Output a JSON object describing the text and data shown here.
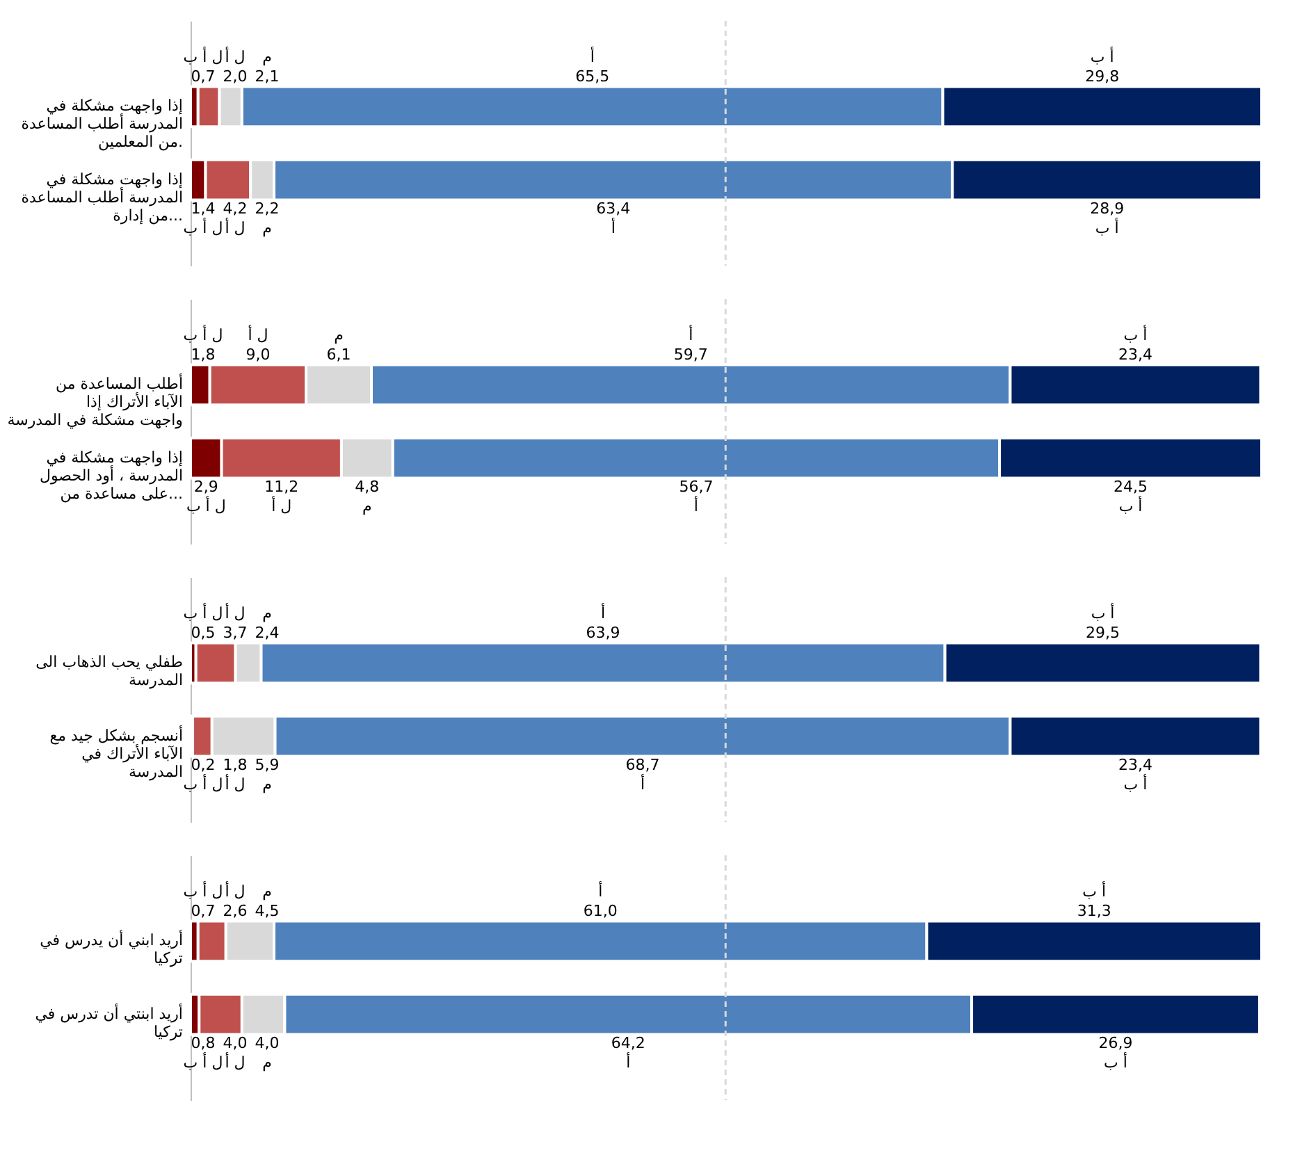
{
  "chart_data": [
    {
      "type": "bar",
      "orientation": "horizontal",
      "stacked": true,
      "tick_labels": "y",
      "xlim": [
        0,
        100.1
      ],
      "categories": [
        "إذا واجهت مشكلة في المدرسة أطلب المساعدة من المعلمين.",
        "إذا واجهت مشكلة في المدرسة أطلب المساعدة من إدارة..."
      ],
      "series": [
        {
          "name": "ل أ ب",
          "color": "#7f0000",
          "values": [
            0.7,
            1.4
          ],
          "value_labels": [
            "0,7",
            "1,4"
          ]
        },
        {
          "name": "ل أ",
          "color": "#c0504d",
          "values": [
            2.0,
            4.2
          ],
          "value_labels": [
            "2,0",
            "4,2"
          ]
        },
        {
          "name": "م",
          "color": "#d9d9d9",
          "values": [
            2.1,
            2.2
          ],
          "value_labels": [
            "2,1",
            "2,2"
          ]
        },
        {
          "name": "أ",
          "color": "#4f81bd",
          "values": [
            65.5,
            63.4
          ],
          "value_labels": [
            "65,5",
            "63,4"
          ]
        },
        {
          "name": "أ ب",
          "color": "#002060",
          "values": [
            29.8,
            28.9
          ],
          "value_labels": [
            "29,8",
            "28,9"
          ]
        }
      ],
      "ref_lines": [
        {
          "axis": "x",
          "value": 50,
          "color": "#d9d9d9",
          "line_style": "dashed"
        }
      ]
    },
    {
      "type": "bar",
      "orientation": "horizontal",
      "stacked": true,
      "tick_labels": "y",
      "xlim": [
        0,
        100.1
      ],
      "categories": [
        "أطلب المساعدة من الآباء الأتراك إذا واجهت مشكلة في المدرسة",
        "إذا واجهت مشكلة في المدرسة ، أود الحصول على مساعدة من..."
      ],
      "series": [
        {
          "name": "ل أ ب",
          "color": "#7f0000",
          "values": [
            1.8,
            2.9
          ],
          "value_labels": [
            "1,8",
            "2,9"
          ]
        },
        {
          "name": "ل أ",
          "color": "#c0504d",
          "values": [
            9.0,
            11.2
          ],
          "value_labels": [
            "9,0",
            "11,2"
          ]
        },
        {
          "name": "م",
          "color": "#d9d9d9",
          "values": [
            6.1,
            4.8
          ],
          "value_labels": [
            "6,1",
            "4,8"
          ]
        },
        {
          "name": "أ",
          "color": "#4f81bd",
          "values": [
            59.7,
            56.7
          ],
          "value_labels": [
            "59,7",
            "56,7"
          ]
        },
        {
          "name": "أ ب",
          "color": "#002060",
          "values": [
            23.4,
            24.5
          ],
          "value_labels": [
            "23,4",
            "24,5"
          ]
        }
      ],
      "ref_lines": [
        {
          "axis": "x",
          "value": 50,
          "color": "#d9d9d9",
          "line_style": "dashed"
        }
      ]
    },
    {
      "type": "bar",
      "orientation": "horizontal",
      "stacked": true,
      "tick_labels": "y",
      "xlim": [
        0,
        100.1
      ],
      "categories": [
        "طفلي يحب الذهاب الى المدرسة",
        "أنسجم بشكل جيد مع الآباء الأتراك في المدرسة"
      ],
      "series": [
        {
          "name": "ل أ ب",
          "color": "#7f0000",
          "values": [
            0.5,
            0.2
          ],
          "value_labels": [
            "0,5",
            "0,2"
          ]
        },
        {
          "name": "ل أ",
          "color": "#c0504d",
          "values": [
            3.7,
            1.8
          ],
          "value_labels": [
            "3,7",
            "1,8"
          ]
        },
        {
          "name": "م",
          "color": "#d9d9d9",
          "values": [
            2.4,
            5.9
          ],
          "value_labels": [
            "2,4",
            "5,9"
          ]
        },
        {
          "name": "أ",
          "color": "#4f81bd",
          "values": [
            63.9,
            68.7
          ],
          "value_labels": [
            "63,9",
            "68,7"
          ]
        },
        {
          "name": "أ ب",
          "color": "#002060",
          "values": [
            29.5,
            23.4
          ],
          "value_labels": [
            "29,5",
            "23,4"
          ]
        }
      ],
      "ref_lines": [
        {
          "axis": "x",
          "value": 50,
          "color": "#d9d9d9",
          "line_style": "dashed"
        }
      ]
    },
    {
      "type": "bar",
      "orientation": "horizontal",
      "stacked": true,
      "tick_labels": "y",
      "xlim": [
        0,
        100.1
      ],
      "categories": [
        "أريد ابني أن يدرس في تركيا",
        "أريد ابنتي أن تدرس في تركيا"
      ],
      "series": [
        {
          "name": "ل أ ب",
          "color": "#7f0000",
          "values": [
            0.7,
            0.8
          ],
          "value_labels": [
            "0,7",
            "0,8"
          ]
        },
        {
          "name": "ل أ",
          "color": "#c0504d",
          "values": [
            2.6,
            4.0
          ],
          "value_labels": [
            "2,6",
            "4,0"
          ]
        },
        {
          "name": "م",
          "color": "#d9d9d9",
          "values": [
            4.5,
            4.0
          ],
          "value_labels": [
            "4,5",
            "4,0"
          ]
        },
        {
          "name": "أ",
          "color": "#4f81bd",
          "values": [
            61.0,
            64.2
          ],
          "value_labels": [
            "61,0",
            "64,2"
          ]
        },
        {
          "name": "أ ب",
          "color": "#002060",
          "values": [
            31.3,
            26.9
          ],
          "value_labels": [
            "31,3",
            "26,9"
          ]
        }
      ],
      "ref_lines": [
        {
          "axis": "x",
          "value": 50,
          "color": "#d9d9d9",
          "line_style": "dashed"
        }
      ]
    }
  ]
}
